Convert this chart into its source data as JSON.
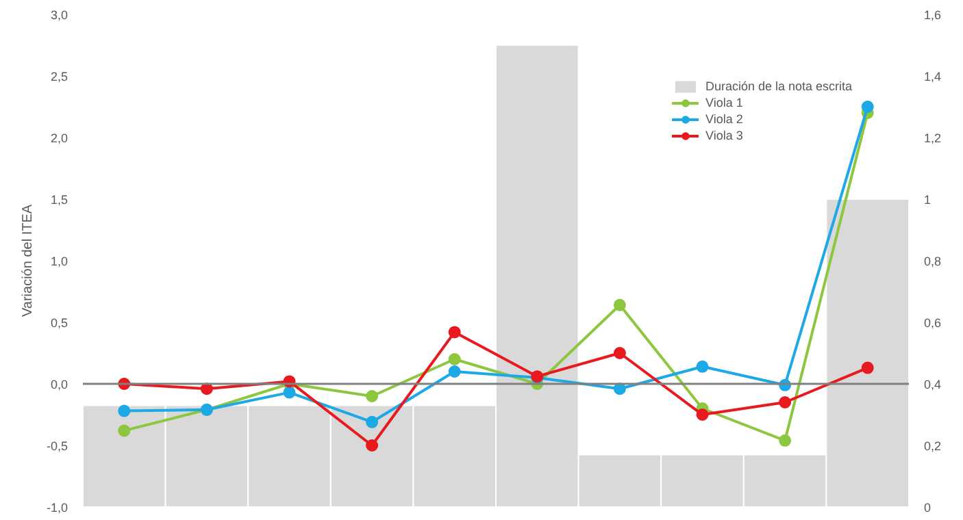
{
  "chart_data": {
    "type": "line",
    "ylabel": "Variación del ITEA",
    "categories": [
      null,
      null,
      null,
      null,
      null,
      null,
      null,
      null,
      null,
      null
    ],
    "ylim": [
      -1,
      3
    ],
    "yticks": [
      {
        "value": -1,
        "label": "-1,0"
      },
      {
        "value": -0.5,
        "label": "-0,5"
      },
      {
        "value": 0,
        "label": "0,0"
      },
      {
        "value": 0.5,
        "label": "0,5"
      },
      {
        "value": 1,
        "label": "1,0"
      },
      {
        "value": 1.5,
        "label": "1,5"
      },
      {
        "value": 2,
        "label": "2,0"
      },
      {
        "value": 2.5,
        "label": "2,5"
      },
      {
        "value": 3,
        "label": "3,0"
      }
    ],
    "y2lim": [
      0,
      1.6
    ],
    "y2ticks": [
      0,
      {
        "value": 0.2,
        "label": "0,2"
      },
      {
        "value": 0.4,
        "label": "0,4"
      },
      {
        "value": 0.6,
        "label": "0,6"
      },
      {
        "value": 0.8,
        "label": "0,8"
      },
      1,
      {
        "value": 1.2,
        "label": "1,2"
      },
      {
        "value": 1.4,
        "label": "1,4"
      },
      {
        "value": 1.6,
        "label": "1,6"
      }
    ],
    "series": [
      {
        "name": "Duración de la nota escrita",
        "type": "bar",
        "axis": "y2",
        "color": "#d9d9d9",
        "values": [
          0.33,
          0.33,
          0.33,
          0.33,
          0.33,
          1.5,
          0.17,
          0.17,
          0.17,
          1.0
        ]
      },
      {
        "name": "Viola 1",
        "color": "#8dc63f",
        "values": [
          -0.38,
          -0.21,
          0.0,
          -0.1,
          0.2,
          0.0,
          0.64,
          -0.2,
          -0.46,
          2.2
        ]
      },
      {
        "name": "Viola 2",
        "color": "#1ca9e6",
        "values": [
          -0.22,
          -0.21,
          -0.07,
          -0.31,
          0.1,
          0.05,
          -0.04,
          0.14,
          -0.01,
          2.25
        ]
      },
      {
        "name": "Viola 3",
        "color": "#e8191f",
        "values": [
          0.0,
          -0.04,
          0.02,
          -0.5,
          0.42,
          0.06,
          0.25,
          -0.25,
          -0.15,
          0.13
        ]
      }
    ],
    "ref_lines": [
      {
        "axis": "y",
        "value": 0,
        "color": "#808080"
      }
    ],
    "marker": "circle",
    "grid": false,
    "legend": "top right"
  }
}
